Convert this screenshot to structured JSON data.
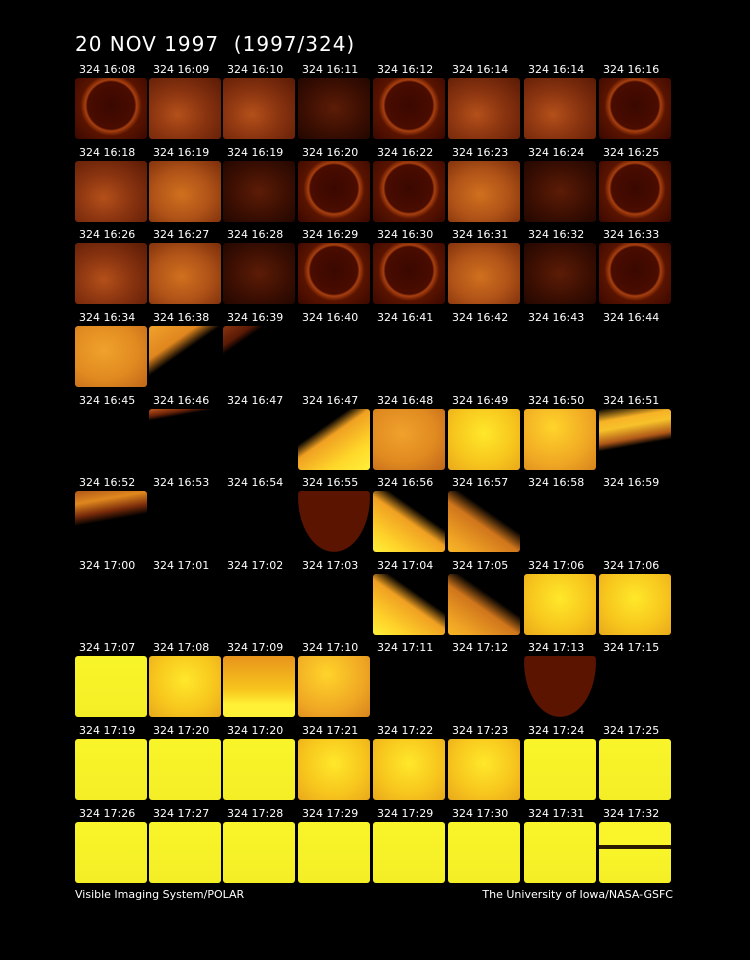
{
  "title": "20 NOV 1997  (1997/324)",
  "footer": {
    "left": "Visible Imaging System/POLAR",
    "right": "The University of Iowa/NASA-GSFC"
  },
  "frames": [
    [
      {
        "label": "324 16:08",
        "kind": "disk"
      },
      {
        "label": "324 16:09",
        "kind": "auroral"
      },
      {
        "label": "324 16:10",
        "kind": "auroral"
      },
      {
        "label": "324 16:11",
        "kind": "dim"
      },
      {
        "label": "324 16:12",
        "kind": "disk"
      },
      {
        "label": "324 16:14",
        "kind": "auroral"
      },
      {
        "label": "324 16:14",
        "kind": "auroral"
      },
      {
        "label": "324 16:16",
        "kind": "disk"
      }
    ],
    [
      {
        "label": "324 16:18",
        "kind": "auroral"
      },
      {
        "label": "324 16:19",
        "kind": "bright-auroral"
      },
      {
        "label": "324 16:19",
        "kind": "dim"
      },
      {
        "label": "324 16:20",
        "kind": "disk"
      },
      {
        "label": "324 16:22",
        "kind": "disk"
      },
      {
        "label": "324 16:23",
        "kind": "bright-auroral"
      },
      {
        "label": "324 16:24",
        "kind": "dim"
      },
      {
        "label": "324 16:25",
        "kind": "disk"
      }
    ],
    [
      {
        "label": "324 16:26",
        "kind": "auroral"
      },
      {
        "label": "324 16:27",
        "kind": "bright-auroral"
      },
      {
        "label": "324 16:28",
        "kind": "dim"
      },
      {
        "label": "324 16:29",
        "kind": "disk"
      },
      {
        "label": "324 16:30",
        "kind": "disk"
      },
      {
        "label": "324 16:31",
        "kind": "bright-auroral"
      },
      {
        "label": "324 16:32",
        "kind": "dim"
      },
      {
        "label": "324 16:33",
        "kind": "disk"
      }
    ],
    [
      {
        "label": "324 16:34",
        "kind": "orange-full"
      },
      {
        "label": "324 16:38",
        "kind": "wedge-tl"
      },
      {
        "label": "324 16:39",
        "kind": "tiny-tl"
      },
      {
        "label": "324 16:40",
        "kind": "black"
      },
      {
        "label": "324 16:41",
        "kind": "black"
      },
      {
        "label": "324 16:42",
        "kind": "black"
      },
      {
        "label": "324 16:43",
        "kind": "black"
      },
      {
        "label": "324 16:44",
        "kind": "black"
      }
    ],
    [
      {
        "label": "324 16:45",
        "kind": "black"
      },
      {
        "label": "324 16:46",
        "kind": "sliver-top"
      },
      {
        "label": "324 16:47",
        "kind": "black"
      },
      {
        "label": "324 16:47",
        "kind": "yellow-wedge-br"
      },
      {
        "label": "324 16:48",
        "kind": "orange-full"
      },
      {
        "label": "324 16:49",
        "kind": "yellow-full"
      },
      {
        "label": "324 16:50",
        "kind": "yellow-orange"
      },
      {
        "label": "324 16:51",
        "kind": "band-top"
      }
    ],
    [
      {
        "label": "324 16:52",
        "kind": "band-top-thin"
      },
      {
        "label": "324 16:53",
        "kind": "black"
      },
      {
        "label": "324 16:54",
        "kind": "black"
      },
      {
        "label": "324 16:55",
        "kind": "dark-disk"
      },
      {
        "label": "324 16:56",
        "kind": "yellow-wedge-bl"
      },
      {
        "label": "324 16:57",
        "kind": "orange-wedge-tl"
      },
      {
        "label": "324 16:58",
        "kind": "black"
      },
      {
        "label": "324 16:59",
        "kind": "black"
      }
    ],
    [
      {
        "label": "324 17:00",
        "kind": "black"
      },
      {
        "label": "324 17:01",
        "kind": "black"
      },
      {
        "label": "324 17:02",
        "kind": "black"
      },
      {
        "label": "324 17:03",
        "kind": "black"
      },
      {
        "label": "324 17:04",
        "kind": "yellow-wedge-bl"
      },
      {
        "label": "324 17:05",
        "kind": "orange-wedge-tl"
      },
      {
        "label": "324 17:06",
        "kind": "yellow-full"
      },
      {
        "label": "324 17:06",
        "kind": "yellow-full"
      }
    ],
    [
      {
        "label": "324 17:07",
        "kind": "lemon"
      },
      {
        "label": "324 17:08",
        "kind": "yellow-full"
      },
      {
        "label": "324 17:09",
        "kind": "yellow-bottom"
      },
      {
        "label": "324 17:10",
        "kind": "yellow-orange"
      },
      {
        "label": "324 17:11",
        "kind": "black"
      },
      {
        "label": "324 17:12",
        "kind": "black"
      },
      {
        "label": "324 17:13",
        "kind": "dark-disk"
      },
      {
        "label": "324 17:15",
        "kind": "black"
      }
    ],
    [
      {
        "label": "324 17:19",
        "kind": "lemon"
      },
      {
        "label": "324 17:20",
        "kind": "lemon"
      },
      {
        "label": "324 17:20",
        "kind": "lemon"
      },
      {
        "label": "324 17:21",
        "kind": "yellow-full"
      },
      {
        "label": "324 17:22",
        "kind": "yellow-full"
      },
      {
        "label": "324 17:23",
        "kind": "yellow-full"
      },
      {
        "label": "324 17:24",
        "kind": "lemon"
      },
      {
        "label": "324 17:25",
        "kind": "lemon"
      }
    ],
    [
      {
        "label": "324 17:26",
        "kind": "lemon"
      },
      {
        "label": "324 17:27",
        "kind": "lemon"
      },
      {
        "label": "324 17:28",
        "kind": "lemon"
      },
      {
        "label": "324 17:29",
        "kind": "lemon"
      },
      {
        "label": "324 17:29",
        "kind": "lemon"
      },
      {
        "label": "324 17:30",
        "kind": "lemon"
      },
      {
        "label": "324 17:31",
        "kind": "lemon"
      },
      {
        "label": "324 17:32",
        "kind": "lemon-striped"
      }
    ]
  ]
}
